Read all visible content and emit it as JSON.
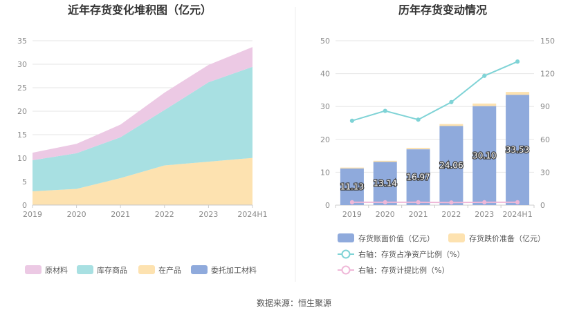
{
  "source": "数据来源：恒生聚源",
  "chart_data": [
    {
      "type": "area",
      "stacked": true,
      "title": "近年存货变化堆积图（亿元）",
      "categories": [
        "2019",
        "2020",
        "2021",
        "2022",
        "2023",
        "2024H1"
      ],
      "ylim": [
        0,
        35
      ],
      "yticks": [
        "0",
        "5",
        "10",
        "15",
        "20",
        "25",
        "30",
        "35"
      ],
      "grid": true,
      "legend_position": "bottom",
      "series": [
        {
          "name": "委托加工材料",
          "color": "#8faadc",
          "values": [
            0.05,
            0.05,
            0.05,
            0.05,
            0.05,
            0.05
          ]
        },
        {
          "name": "在产品",
          "color": "#fde2b0",
          "values": [
            2.9,
            3.4,
            5.7,
            8.4,
            9.2,
            10.0
          ]
        },
        {
          "name": "库存商品",
          "color": "#a8e0e2",
          "values": [
            6.6,
            7.6,
            8.7,
            11.8,
            16.9,
            19.4
          ]
        },
        {
          "name": "原材料",
          "color": "#ecc9e4",
          "values": [
            1.6,
            2.0,
            2.7,
            3.7,
            3.7,
            4.2
          ]
        }
      ],
      "legend_order": [
        "原材料",
        "库存商品",
        "在产品",
        "委托加工材料"
      ]
    },
    {
      "type": "bar",
      "title": "历年存货变动情况",
      "categories": [
        "2019",
        "2020",
        "2021",
        "2022",
        "2023",
        "2024H1"
      ],
      "ylim": [
        0,
        50
      ],
      "yticks": [
        "0",
        "10",
        "20",
        "30",
        "40",
        "50"
      ],
      "y2lim": [
        0,
        150
      ],
      "y2ticks": [
        "0",
        "30",
        "60",
        "90",
        "120",
        "150"
      ],
      "grid": true,
      "legend_position": "bottom",
      "bars": [
        {
          "name": "存货账面价值（亿元）",
          "color": "#8faadc",
          "values": [
            11.13,
            13.14,
            16.97,
            24.06,
            30.1,
            33.53
          ],
          "labels": [
            "11.13",
            "13.14",
            "16.97",
            "24.06",
            "30.10",
            "33.53"
          ]
        },
        {
          "name": "存货跌价准备（亿元）",
          "color": "#fde2b0",
          "values": [
            0.3,
            0.35,
            0.45,
            0.6,
            0.8,
            0.9
          ]
        }
      ],
      "lines": [
        {
          "name": "右轴：存货占净资产比例（%）",
          "color": "#7fd3d6",
          "values": [
            77,
            86,
            78,
            94,
            118,
            131
          ]
        },
        {
          "name": "右轴：存货计提比例（%）",
          "color": "#efb8d8",
          "values": [
            2.6,
            2.6,
            2.6,
            2.4,
            2.6,
            2.6
          ]
        }
      ]
    }
  ]
}
